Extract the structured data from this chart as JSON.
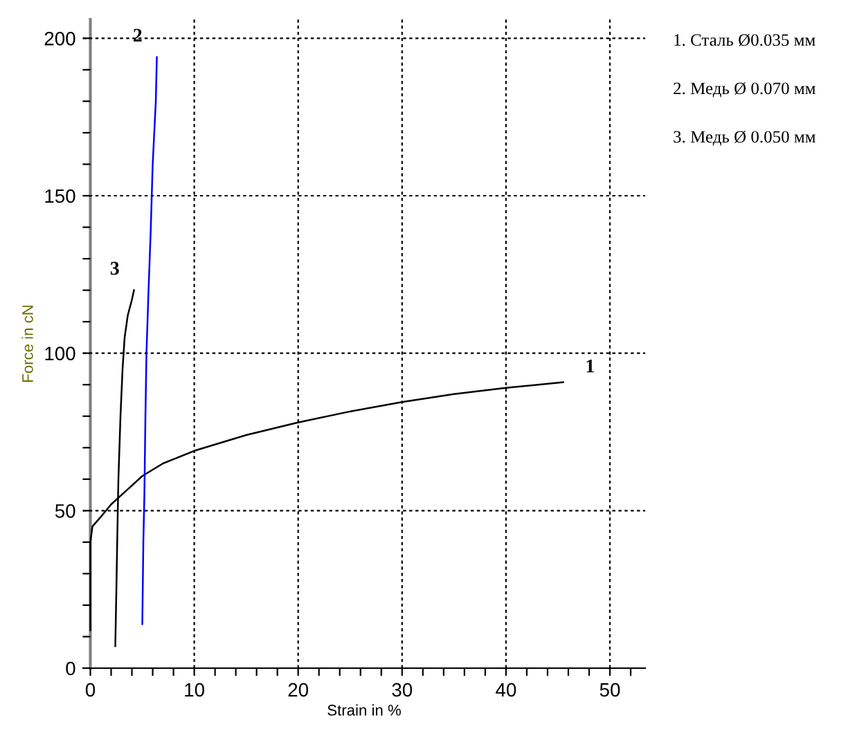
{
  "chart_data": {
    "type": "line",
    "xlabel": "Strain in %",
    "ylabel": "Force in cN",
    "xlim": [
      -0.7,
      53.4
    ],
    "ylim": [
      0,
      206
    ],
    "xticks": [
      0,
      {
        "value": 2,
        "label": null
      },
      {
        "value": 4,
        "label": null
      },
      {
        "value": 6,
        "label": null
      },
      {
        "value": 8,
        "label": null
      },
      10,
      {
        "value": 12,
        "label": null
      },
      {
        "value": 14,
        "label": null
      },
      {
        "value": 16,
        "label": null
      },
      {
        "value": 18,
        "label": null
      },
      20,
      {
        "value": 22,
        "label": null
      },
      {
        "value": 24,
        "label": null
      },
      {
        "value": 26,
        "label": null
      },
      {
        "value": 28,
        "label": null
      },
      30,
      {
        "value": 32,
        "label": null
      },
      {
        "value": 34,
        "label": null
      },
      {
        "value": 36,
        "label": null
      },
      {
        "value": 38,
        "label": null
      },
      40,
      {
        "value": 42,
        "label": null
      },
      {
        "value": 44,
        "label": null
      },
      {
        "value": 46,
        "label": null
      },
      {
        "value": 48,
        "label": null
      },
      50,
      {
        "value": 52,
        "label": null
      }
    ],
    "yticks": [
      0,
      {
        "value": 10,
        "label": null
      },
      {
        "value": 20,
        "label": null
      },
      {
        "value": 30,
        "label": null
      },
      {
        "value": 40,
        "label": null
      },
      50,
      {
        "value": 60,
        "label": null
      },
      {
        "value": 70,
        "label": null
      },
      {
        "value": 80,
        "label": null
      },
      {
        "value": 90,
        "label": null
      },
      100,
      {
        "value": 110,
        "label": null
      },
      {
        "value": 120,
        "label": null
      },
      {
        "value": 130,
        "label": null
      },
      {
        "value": 140,
        "label": null
      },
      150,
      {
        "value": 160,
        "label": null
      },
      {
        "value": 170,
        "label": null
      },
      {
        "value": 180,
        "label": null
      },
      {
        "value": 190,
        "label": null
      },
      200
    ],
    "grid": true,
    "legend": false,
    "line_style": "solid",
    "marker": "none",
    "series": [
      {
        "name": "1",
        "color": "#000000",
        "x": [
          0,
          0,
          0,
          0.2,
          1,
          2,
          3,
          5,
          7,
          10,
          15,
          20,
          25,
          30,
          35,
          40,
          45.5
        ],
        "values": [
          12,
          30,
          40,
          45,
          48,
          52,
          55,
          61,
          65,
          69,
          74,
          78,
          81.5,
          84.5,
          87,
          89,
          90.8
        ]
      },
      {
        "name": "2",
        "color": "#0000ff",
        "x": [
          5,
          5.1,
          5.2,
          5.3,
          5.4,
          5.6,
          5.8,
          6.0,
          6.3,
          6.4
        ],
        "values": [
          14,
          40,
          55,
          80,
          100,
          120,
          138,
          160,
          180,
          194
        ]
      },
      {
        "name": "3",
        "color": "#000000",
        "x": [
          2.4,
          2.5,
          2.6,
          2.7,
          2.9,
          3.1,
          3.3,
          3.6,
          4.0,
          4.2
        ],
        "values": [
          7,
          24,
          43,
          60,
          80,
          95,
          105,
          112,
          117,
          120
        ]
      }
    ],
    "annotations": [
      "1. Сталь Ø0.035 мм",
      "2. Медь Ø 0.070 мм",
      "3. Медь Ø 0.050 мм"
    ]
  }
}
